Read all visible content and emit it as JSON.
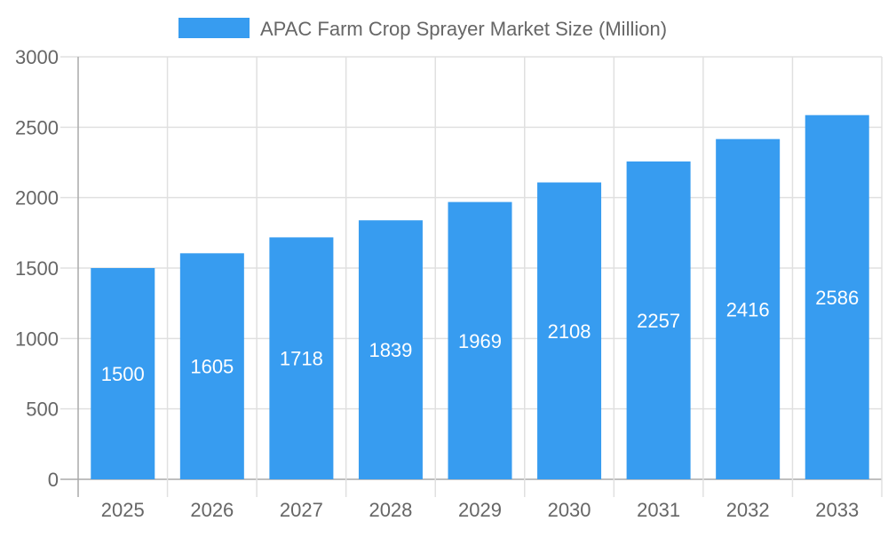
{
  "chart_data": {
    "type": "bar",
    "title": "",
    "categories": [
      "2025",
      "2026",
      "2027",
      "2028",
      "2029",
      "2030",
      "2031",
      "2032",
      "2033"
    ],
    "series": [
      {
        "name": "APAC Farm Crop Sprayer Market Size (Million)",
        "values": [
          1500,
          1605,
          1718,
          1839,
          1969,
          2108,
          2257,
          2416,
          2586
        ],
        "color": "#379cf0"
      }
    ],
    "ylim": [
      0,
      3000
    ],
    "yticks": [
      0,
      500,
      1000,
      1500,
      2000,
      2500,
      3000
    ],
    "grid": true,
    "legend_position": "top",
    "data_labels": true
  }
}
